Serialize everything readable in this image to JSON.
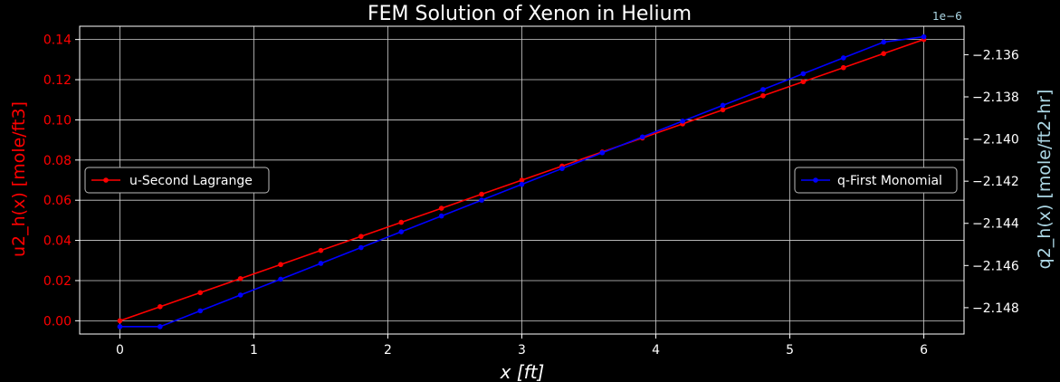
{
  "chart_data": {
    "type": "line",
    "title": "FEM Solution of Xenon in Helium",
    "xlabel": "x [ft]",
    "xlim": [
      -0.3,
      6.3
    ],
    "x_ticks": [
      0,
      1,
      2,
      3,
      4,
      5,
      6
    ],
    "left_axis": {
      "label": "u2_h(x) [mole/ft3]",
      "color": "#ff0000",
      "lim": [
        -0.0066,
        0.1466
      ],
      "ticks": [
        0.0,
        0.02,
        0.04,
        0.06,
        0.08,
        0.1,
        0.12,
        0.14
      ],
      "tick_labels": [
        "0.00",
        "0.02",
        "0.04",
        "0.06",
        "0.08",
        "0.10",
        "0.12",
        "0.14"
      ]
    },
    "right_axis": {
      "label": "q2_h(x) [mole/ft2-hr]",
      "color": "#add8e6",
      "offset_text": "1e−6",
      "lim": [
        -2.14925,
        -2.13465
      ],
      "ticks": [
        -2.136,
        -2.138,
        -2.14,
        -2.142,
        -2.144,
        -2.146,
        -2.148
      ],
      "tick_labels": [
        "−2.136",
        "−2.138",
        "−2.140",
        "−2.142",
        "−2.144",
        "−2.146",
        "−2.148"
      ]
    },
    "grid": true,
    "series": [
      {
        "name": "u-Second Lagrange",
        "axis": "left",
        "color": "#ff0000",
        "x": [
          0,
          0.3,
          0.6,
          0.9,
          1.2,
          1.5,
          1.8,
          2.1,
          2.4,
          2.7,
          3.0,
          3.3,
          3.6,
          3.9,
          4.2,
          4.5,
          4.8,
          5.1,
          5.4,
          5.7,
          6.0
        ],
        "values": [
          0.0,
          0.007,
          0.014,
          0.021,
          0.028,
          0.035,
          0.042,
          0.049,
          0.056,
          0.063,
          0.07,
          0.077,
          0.084,
          0.091,
          0.098,
          0.105,
          0.112,
          0.119,
          0.126,
          0.133,
          0.14
        ]
      },
      {
        "name": "q-First Monomial",
        "axis": "right",
        "color": "#0000ff",
        "x": [
          0,
          0.3,
          0.6,
          0.9,
          1.2,
          1.5,
          1.8,
          2.1,
          2.4,
          2.7,
          3.0,
          3.3,
          3.6,
          3.9,
          4.2,
          4.5,
          4.8,
          5.1,
          5.4,
          5.7,
          6.0
        ],
        "values": [
          -2.1489,
          -2.1489,
          -2.14815,
          -2.1474,
          -2.14665,
          -2.1459,
          -2.14515,
          -2.1444,
          -2.14365,
          -2.1429,
          -2.14215,
          -2.1414,
          -2.14065,
          -2.1399,
          -2.13915,
          -2.1384,
          -2.13765,
          -2.1369,
          -2.13615,
          -2.1354,
          -2.13515
        ]
      }
    ],
    "legends": [
      {
        "placement": "center-left",
        "entries": [
          "u-Second Lagrange"
        ]
      },
      {
        "placement": "center-right",
        "entries": [
          "q-First Monomial"
        ]
      }
    ]
  }
}
